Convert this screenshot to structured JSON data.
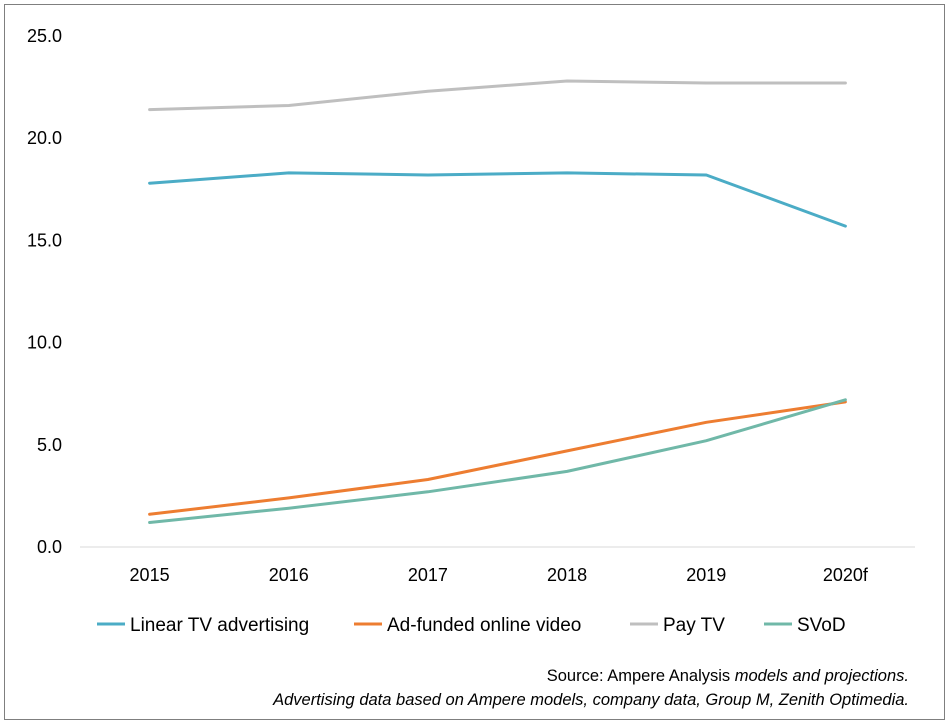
{
  "chart_data": {
    "type": "line",
    "title": "",
    "xlabel": "",
    "ylabel": "",
    "categories": [
      "2015",
      "2016",
      "2017",
      "2018",
      "2019",
      "2020f"
    ],
    "ylim": [
      0,
      25
    ],
    "yticks": [
      0,
      5,
      10,
      15,
      20,
      25
    ],
    "ytick_labels": [
      "0.0",
      "5.0",
      "10.0",
      "15.0",
      "20.0",
      "25.0"
    ],
    "grid": false,
    "legend_position": "bottom",
    "series": [
      {
        "name": "Linear TV advertising",
        "color": "#4bacc6",
        "values": [
          17.8,
          18.3,
          18.2,
          18.3,
          18.2,
          15.7
        ]
      },
      {
        "name": "Ad-funded online video",
        "color": "#ed7d31",
        "values": [
          1.6,
          2.4,
          3.3,
          4.7,
          6.1,
          7.1
        ]
      },
      {
        "name": "Pay TV",
        "color": "#bfbfbf",
        "values": [
          21.4,
          21.6,
          22.3,
          22.8,
          22.7,
          22.7
        ]
      },
      {
        "name": "SVoD",
        "color": "#70b8a8",
        "values": [
          1.2,
          1.9,
          2.7,
          3.7,
          5.2,
          7.2
        ]
      }
    ]
  },
  "source": {
    "line1_prefix": "Source: Ampere Analysis ",
    "line1_italic": "models and projections.",
    "line2": "Advertising data based on Ampere models, company data, Group M, Zenith Optimedia."
  }
}
